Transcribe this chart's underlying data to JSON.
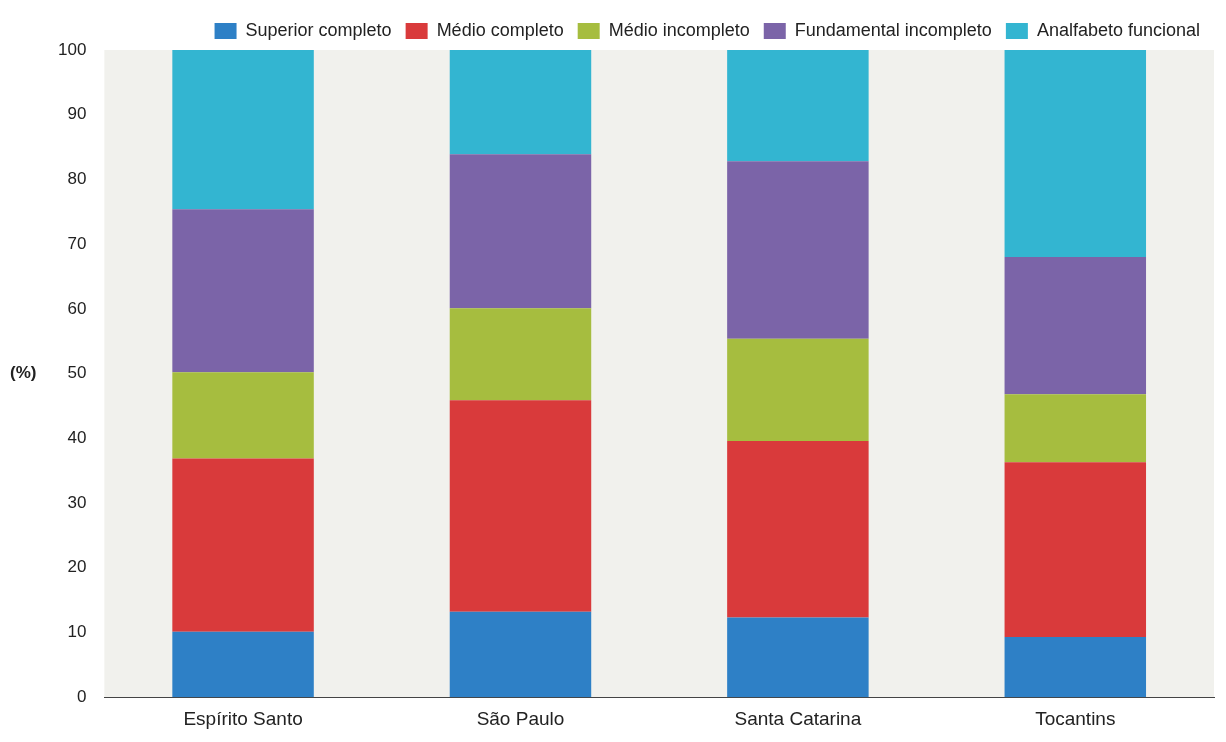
{
  "chart_data": {
    "type": "bar",
    "stacked": true,
    "ylabel": "(%)",
    "categories": [
      "Espírito Santo",
      "São Paulo",
      "Santa Catarina",
      "Tocantins"
    ],
    "series": [
      {
        "name": "Superior completo",
        "color": "#2e80c6",
        "values": [
          10.1,
          13.2,
          12.3,
          9.3
        ]
      },
      {
        "name": "Médio completo",
        "color": "#d93a3b",
        "values": [
          26.8,
          32.7,
          27.3,
          27.0
        ]
      },
      {
        "name": "Médio incompleto",
        "color": "#a6bd3f",
        "values": [
          13.3,
          14.2,
          15.8,
          10.5
        ]
      },
      {
        "name": "Fundamental incompleto",
        "color": "#7b64a8",
        "values": [
          25.2,
          23.8,
          27.4,
          21.2
        ]
      },
      {
        "name": "Analfabeto funcional",
        "color": "#33b5d1",
        "values": [
          24.6,
          16.1,
          17.2,
          32.0
        ]
      }
    ],
    "ylim": [
      0,
      100
    ],
    "yticks": [
      0,
      10,
      20,
      30,
      40,
      50,
      60,
      70,
      80,
      90,
      100
    ],
    "grid": false,
    "legend": "top"
  }
}
